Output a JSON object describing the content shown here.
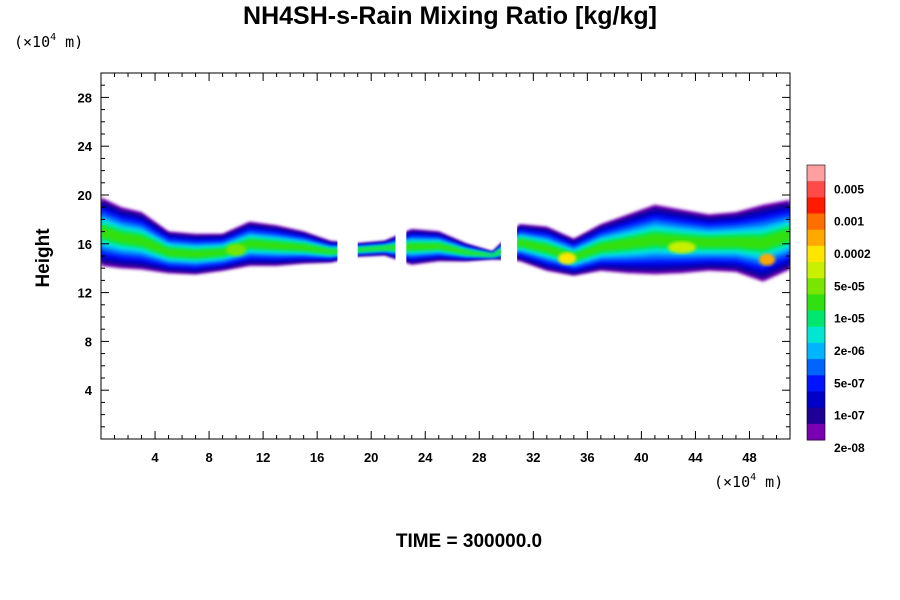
{
  "chart_data": {
    "type": "heatmap",
    "title": "NH4SH-s-Rain Mixing Ratio [kg/kg]",
    "ylabel": "Height",
    "xlabel": "",
    "x_unit": "m",
    "y_unit": "m",
    "unit_prefix": "(×10",
    "unit_exp": "4",
    "unit_suffix": " m)",
    "footer": "TIME = 300000.0",
    "xlim": [
      0,
      51
    ],
    "ylim": [
      0,
      30
    ],
    "xticks": [
      "4",
      "8",
      "12",
      "16",
      "20",
      "24",
      "28",
      "32",
      "36",
      "40",
      "44",
      "48"
    ],
    "xtick_values": [
      4,
      8,
      12,
      16,
      20,
      24,
      28,
      32,
      36,
      40,
      44,
      48
    ],
    "yticks": [
      "4",
      "8",
      "12",
      "16",
      "20",
      "24",
      "28"
    ],
    "ytick_values": [
      4,
      8,
      12,
      16,
      20,
      24,
      28
    ],
    "colorbar": {
      "labels": [
        "0.005",
        "0.001",
        "0.0002",
        "5e-05",
        "1e-05",
        "2e-06",
        "5e-07",
        "1e-07",
        "2e-08"
      ],
      "colors": [
        "#ff9f9f",
        "#ff4a4a",
        "#ff1a00",
        "#ff6f00",
        "#ffa800",
        "#ffe600",
        "#c8f000",
        "#78e600",
        "#30e010",
        "#00e66e",
        "#00e6d2",
        "#00b4ff",
        "#0064ff",
        "#0014ff",
        "#0000c8",
        "#1e0096",
        "#7a00b4"
      ]
    },
    "series": [
      {
        "values": [
          [
            0,
            14.2,
            19.8
          ],
          [
            1.5,
            14.0,
            19.0
          ],
          [
            3,
            13.9,
            18.6
          ],
          [
            5,
            13.6,
            17.0
          ],
          [
            7,
            13.5,
            16.8
          ],
          [
            9,
            13.8,
            16.8
          ],
          [
            11,
            14.2,
            17.8
          ],
          [
            13,
            14.2,
            17.5
          ],
          [
            15,
            14.4,
            17.0
          ],
          [
            17,
            14.5,
            16.2
          ],
          [
            19,
            15.0,
            16.0
          ],
          [
            21,
            15.1,
            16.2
          ],
          [
            23,
            14.3,
            17.2
          ],
          [
            25,
            14.6,
            17.0
          ],
          [
            27,
            14.6,
            16.0
          ],
          [
            29,
            14.8,
            15.3
          ],
          [
            31,
            14.6,
            17.6
          ],
          [
            33,
            13.8,
            17.4
          ],
          [
            35,
            13.4,
            16.4
          ],
          [
            37,
            13.8,
            17.6
          ],
          [
            39,
            13.6,
            18.4
          ],
          [
            41,
            13.5,
            19.2
          ],
          [
            43,
            13.6,
            18.8
          ],
          [
            45,
            13.8,
            18.4
          ],
          [
            47,
            13.7,
            18.6
          ],
          [
            49,
            12.9,
            19.2
          ],
          [
            51,
            13.9,
            19.6
          ]
        ]
      }
    ]
  }
}
